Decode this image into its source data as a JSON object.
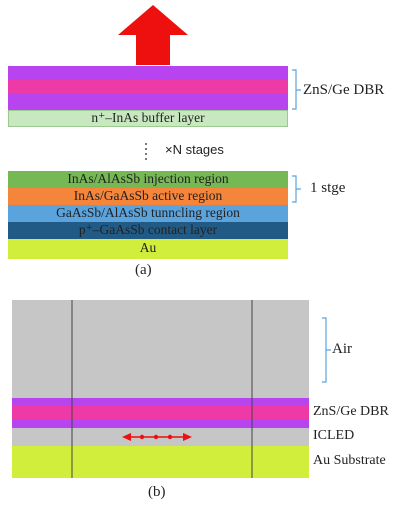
{
  "panel_a": {
    "label": "(a)",
    "dbr_bracket_label": "ZnS/Ge DBR",
    "buffer_layer": "n⁺–InAs buffer layer",
    "stages_label": "×N stages",
    "injection_layer": "InAs/AlAsSb injection region",
    "active_layer": "InAs/GaAsSb active region",
    "tunneling_layer": "GaAsSb/AlAsSb tunncling region",
    "contact_layer": "p⁺–GaAsSb contact layer",
    "au_layer": "Au",
    "stage_bracket_label": "1 stge"
  },
  "panel_b": {
    "label": "(b)",
    "air_label": "Air",
    "dbr_label": "ZnS/Ge DBR",
    "icled_label": "ICLED",
    "substrate_label": "Au Substrate"
  },
  "colors": {
    "purple": "#b844f0",
    "magenta": "#ee3aa6",
    "buffer": "#c8e9c0",
    "green": "#76b854",
    "orange": "#f4853a",
    "blue": "#5ba3dd",
    "navy": "#215a85",
    "lime": "#d2ee3c",
    "gray": "#c6c6c6",
    "arrow": "#ee0f0f",
    "bracket": "#5ba3dd"
  }
}
